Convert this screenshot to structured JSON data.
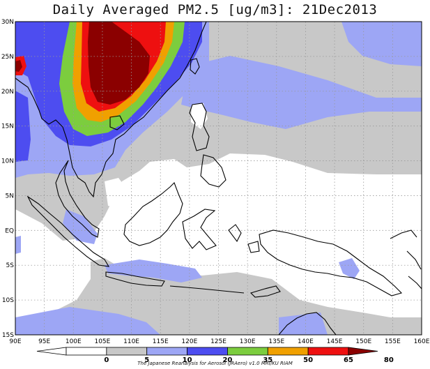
{
  "title": "Daily Averaged PM2.5 [ug/m3]: 21Dec2013",
  "lat_labels": [
    "30N",
    "25N",
    "20N",
    "15N",
    "10N",
    "5N",
    "EQ",
    "5S",
    "10S",
    "15S"
  ],
  "lon_labels": [
    "90E",
    "95E",
    "100E",
    "105E",
    "110E",
    "115E",
    "120E",
    "125E",
    "130E",
    "135E",
    "140E",
    "145E",
    "150E",
    "155E",
    "160E"
  ],
  "map_extent": {
    "lon": [
      90,
      160
    ],
    "lat": [
      -15,
      30
    ]
  },
  "colorbar": {
    "tick_labels": [
      "0",
      "5",
      "10",
      "20",
      "35",
      "50",
      "65",
      "80"
    ],
    "bins": [
      {
        "range": "<0",
        "color": "#ffffff"
      },
      {
        "range": "0-5",
        "color": "#ffffff"
      },
      {
        "range": "5-10",
        "color": "#c8c8c8"
      },
      {
        "range": "10-20",
        "color": "#9da6f5"
      },
      {
        "range": "20-35",
        "color": "#4d4df0"
      },
      {
        "range": "35-50",
        "color": "#7ccd3e"
      },
      {
        "range": "50-65",
        "color": "#f0a000"
      },
      {
        "range": "65-80",
        "color": "#ee1010"
      },
      {
        "range": ">80",
        "color": "#8b0000"
      }
    ]
  },
  "credit": "The Japanese Reanalysis for Aerosol (JRAero) v1.0 MRI/KU RIAM"
}
